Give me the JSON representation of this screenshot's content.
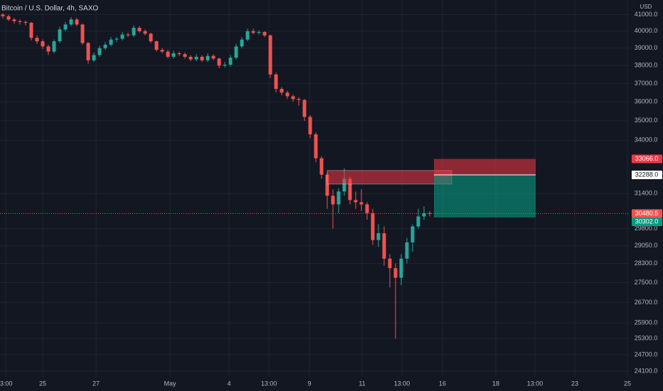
{
  "chart_data": {
    "type": "candlestick",
    "title": "Bitcoin / U.S. Dollar, 4h, SAXO",
    "y_unit": "USD",
    "yscale": "log",
    "ylim": [
      23900,
      41900
    ],
    "yticks": [
      {
        "value": 41000,
        "label": "41000.0"
      },
      {
        "value": 40000,
        "label": "40000.0"
      },
      {
        "value": 39000,
        "label": "39000.0"
      },
      {
        "value": 38000,
        "label": "38000.0"
      },
      {
        "value": 37000,
        "label": "37000.0"
      },
      {
        "value": 36000,
        "label": "36000.0"
      },
      {
        "value": 35000,
        "label": "35000.0"
      },
      {
        "value": 34000,
        "label": "34000.0"
      },
      {
        "value": 31400,
        "label": "31400.0"
      },
      {
        "value": 29800,
        "label": "29800.0"
      },
      {
        "value": 29050,
        "label": "29050.0"
      },
      {
        "value": 28300,
        "label": "28300.0"
      },
      {
        "value": 27500,
        "label": "27500.0"
      },
      {
        "value": 26700,
        "label": "26700.0"
      },
      {
        "value": 25900,
        "label": "25900.0"
      },
      {
        "value": 25300,
        "label": "25300.0"
      },
      {
        "value": 24700,
        "label": "24700.0"
      },
      {
        "value": 24100,
        "label": "24100.0"
      }
    ],
    "x_labels": [
      "3:00",
      "25",
      "27",
      "May",
      "4",
      "13:00",
      "9",
      "11",
      "13:00",
      "16",
      "18",
      "13:00",
      "23",
      "25"
    ],
    "grid": true,
    "up_color": "#26a69a",
    "down_color": "#ef5350",
    "open": [
      41000,
      40900,
      40700,
      40600,
      40550,
      40500,
      39600,
      39400,
      39100,
      38800,
      39400,
      40100,
      40400,
      40700,
      40400,
      39300,
      38300,
      38600,
      39000,
      39200,
      39500,
      39550,
      39800,
      39750,
      40200,
      40000,
      39850,
      39400,
      38900,
      38800,
      38500,
      38700,
      38650,
      38500,
      38350,
      38500,
      38300,
      38550,
      38400,
      38000,
      38050,
      38450,
      39100,
      39500,
      40000,
      39900,
      39950,
      39750,
      37500,
      36700,
      36500,
      36300,
      36150,
      36100,
      35200,
      34300,
      33100,
      32300,
      31300,
      30900,
      31500,
      32100,
      31100,
      31000,
      30900,
      30500,
      29300,
      29600,
      28500,
      28100,
      27700,
      28500,
      29200,
      29900,
      30350,
      30500
    ],
    "high": [
      41100,
      41000,
      40800,
      40700,
      40650,
      40550,
      39750,
      39500,
      39200,
      39500,
      40250,
      40550,
      40850,
      40800,
      40450,
      39350,
      38750,
      39150,
      39350,
      39650,
      39650,
      39950,
      39900,
      40350,
      40300,
      40100,
      39900,
      39450,
      39000,
      38900,
      38850,
      38800,
      38750,
      38600,
      38650,
      38600,
      38700,
      38650,
      38450,
      38200,
      38600,
      39250,
      39650,
      40150,
      40150,
      40050,
      40000,
      39800,
      37600,
      36800,
      36600,
      36400,
      36250,
      36150,
      35300,
      34400,
      33200,
      32400,
      31600,
      31650,
      32600,
      32200,
      31500,
      31600,
      31000,
      30700,
      30000,
      29900,
      28700,
      28300,
      28700,
      29400,
      30000,
      30700,
      30800,
      30600
    ],
    "low": [
      40750,
      40600,
      40450,
      40400,
      40350,
      39450,
      39250,
      38950,
      38600,
      38700,
      39300,
      40000,
      40300,
      40300,
      39200,
      38100,
      38200,
      38500,
      38900,
      39100,
      39350,
      39450,
      39650,
      39650,
      39900,
      39750,
      39300,
      38800,
      38700,
      38400,
      38400,
      38550,
      38400,
      38250,
      38250,
      38200,
      38200,
      38300,
      37850,
      37900,
      37950,
      38350,
      39000,
      39400,
      39800,
      39800,
      39650,
      37300,
      36500,
      36350,
      36150,
      36000,
      35800,
      35000,
      34100,
      32900,
      32100,
      30700,
      29800,
      30500,
      31300,
      30900,
      30700,
      30600,
      30200,
      29100,
      29000,
      28200,
      27300,
      25300,
      27400,
      28300,
      28800,
      29800,
      30200,
      30350
    ],
    "close": [
      40900,
      40700,
      40600,
      40550,
      40500,
      39600,
      39400,
      39100,
      38800,
      39400,
      40100,
      40400,
      40700,
      40400,
      39300,
      38300,
      38600,
      39000,
      39200,
      39500,
      39550,
      39800,
      39750,
      40200,
      40000,
      39850,
      39400,
      38900,
      38800,
      38500,
      38700,
      38650,
      38500,
      38350,
      38500,
      38300,
      38550,
      38400,
      38000,
      38050,
      38450,
      39100,
      39500,
      40000,
      39900,
      39950,
      39750,
      37500,
      36700,
      36500,
      36300,
      36150,
      36100,
      35200,
      34300,
      33100,
      32300,
      31300,
      30900,
      31500,
      32100,
      31100,
      31000,
      30900,
      30500,
      29300,
      29600,
      28500,
      28100,
      27700,
      28500,
      29200,
      29900,
      30350,
      30500,
      30480.5
    ],
    "zone": {
      "top": 32500,
      "bottom": 31850
    },
    "position": {
      "stop": {
        "value": 33066,
        "label": "33066.0"
      },
      "entry": {
        "value": 32288,
        "label": "32288.0"
      },
      "target": {
        "value": 30302,
        "label": "30302.0"
      }
    }
  }
}
